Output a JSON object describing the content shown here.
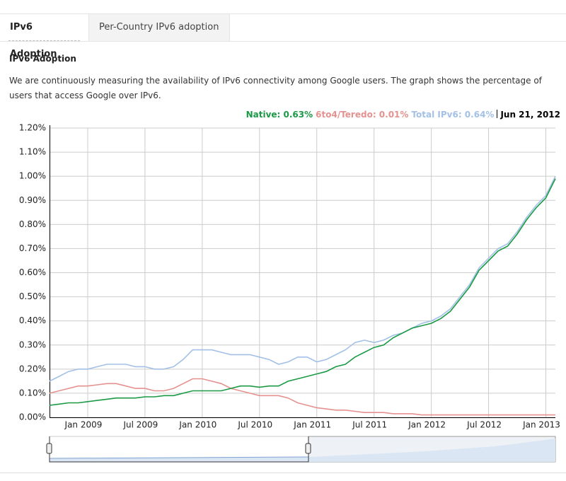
{
  "tabs": [
    "IPv6 Adoption",
    "Per-Country IPv6 adoption"
  ],
  "heading": "IPv6 Adoption",
  "description": "We are continuously measuring the availability of IPv6 connectivity among Google users. The graph shows the percentage of users that access Google over IPv6.",
  "chart_data": {
    "type": "line",
    "legend_date": "Jun 21, 2012",
    "x": [
      "2008-09",
      "2008-10",
      "2008-11",
      "2008-12",
      "2009-01",
      "2009-02",
      "2009-03",
      "2009-04",
      "2009-05",
      "2009-06",
      "2009-07",
      "2009-08",
      "2009-09",
      "2009-10",
      "2009-11",
      "2009-12",
      "2010-01",
      "2010-02",
      "2010-03",
      "2010-04",
      "2010-05",
      "2010-06",
      "2010-07",
      "2010-08",
      "2010-09",
      "2010-10",
      "2010-11",
      "2010-12",
      "2011-01",
      "2011-02",
      "2011-03",
      "2011-04",
      "2011-05",
      "2011-06",
      "2011-07",
      "2011-08",
      "2011-09",
      "2011-10",
      "2011-11",
      "2011-12",
      "2012-01",
      "2012-02",
      "2012-03",
      "2012-04",
      "2012-05",
      "2012-06",
      "2012-07",
      "2012-08",
      "2012-09",
      "2012-10",
      "2012-11",
      "2012-12",
      "2013-01",
      "2013-02"
    ],
    "series": [
      {
        "name": "Native: 0.63%",
        "color": "#1a9a45",
        "values": [
          0.05,
          0.055,
          0.06,
          0.06,
          0.065,
          0.07,
          0.075,
          0.08,
          0.08,
          0.08,
          0.085,
          0.085,
          0.09,
          0.09,
          0.1,
          0.11,
          0.11,
          0.11,
          0.11,
          0.12,
          0.13,
          0.13,
          0.125,
          0.13,
          0.13,
          0.15,
          0.16,
          0.17,
          0.18,
          0.19,
          0.21,
          0.22,
          0.25,
          0.27,
          0.29,
          0.3,
          0.33,
          0.35,
          0.37,
          0.38,
          0.39,
          0.41,
          0.44,
          0.49,
          0.54,
          0.61,
          0.65,
          0.69,
          0.71,
          0.76,
          0.82,
          0.87,
          0.91,
          0.99
        ]
      },
      {
        "name": "6to4/Teredo: 0.01%",
        "color": "#e5918f",
        "values": [
          0.1,
          0.11,
          0.12,
          0.13,
          0.13,
          0.135,
          0.14,
          0.14,
          0.13,
          0.12,
          0.12,
          0.11,
          0.11,
          0.12,
          0.14,
          0.16,
          0.16,
          0.15,
          0.14,
          0.12,
          0.11,
          0.1,
          0.09,
          0.09,
          0.09,
          0.08,
          0.06,
          0.05,
          0.04,
          0.035,
          0.03,
          0.03,
          0.025,
          0.02,
          0.02,
          0.02,
          0.015,
          0.015,
          0.015,
          0.01,
          0.01,
          0.01,
          0.01,
          0.01,
          0.01,
          0.01,
          0.01,
          0.01,
          0.01,
          0.01,
          0.01,
          0.01,
          0.01,
          0.01
        ]
      },
      {
        "name": "Total IPv6: 0.64%",
        "color": "#a3c0e6",
        "values": [
          0.15,
          0.17,
          0.19,
          0.2,
          0.2,
          0.21,
          0.22,
          0.22,
          0.22,
          0.21,
          0.21,
          0.2,
          0.2,
          0.21,
          0.24,
          0.28,
          0.28,
          0.28,
          0.27,
          0.26,
          0.26,
          0.26,
          0.25,
          0.24,
          0.22,
          0.23,
          0.25,
          0.25,
          0.23,
          0.24,
          0.26,
          0.28,
          0.31,
          0.32,
          0.31,
          0.32,
          0.34,
          0.35,
          0.37,
          0.39,
          0.4,
          0.42,
          0.45,
          0.5,
          0.55,
          0.62,
          0.66,
          0.7,
          0.72,
          0.77,
          0.83,
          0.88,
          0.92,
          1.0
        ]
      }
    ],
    "xlim": [
      "2008-09",
      "2013-02"
    ],
    "xticks": [
      {
        "value": "2009-01",
        "label": "Jan 2009"
      },
      {
        "value": "2009-07",
        "label": "Jul 2009"
      },
      {
        "value": "2010-01",
        "label": "Jan 2010"
      },
      {
        "value": "2010-07",
        "label": "Jul 2010"
      },
      {
        "value": "2011-01",
        "label": "Jan 2011"
      },
      {
        "value": "2011-07",
        "label": "Jul 2011"
      },
      {
        "value": "2012-01",
        "label": "Jan 2012"
      },
      {
        "value": "2012-07",
        "label": "Jul 2012"
      },
      {
        "value": "2013-01",
        "label": "Jan 2013"
      }
    ],
    "ylim": [
      0,
      1.2
    ],
    "yticks": [
      {
        "value": 0,
        "label": "0.00%"
      },
      {
        "value": 0.1,
        "label": "0.10%"
      },
      {
        "value": 0.2,
        "label": "0.20%"
      },
      {
        "value": 0.3,
        "label": "0.30%"
      },
      {
        "value": 0.4,
        "label": "0.40%"
      },
      {
        "value": 0.5,
        "label": "0.50%"
      },
      {
        "value": 0.6,
        "label": "0.60%"
      },
      {
        "value": 0.7,
        "label": "0.70%"
      },
      {
        "value": 0.8,
        "label": "0.80%"
      },
      {
        "value": 0.9,
        "label": "0.90%"
      },
      {
        "value": 1.0,
        "label": "1.00%"
      },
      {
        "value": 1.1,
        "label": "1.10%"
      },
      {
        "value": 1.2,
        "label": "1.20%"
      }
    ],
    "grid": true
  }
}
